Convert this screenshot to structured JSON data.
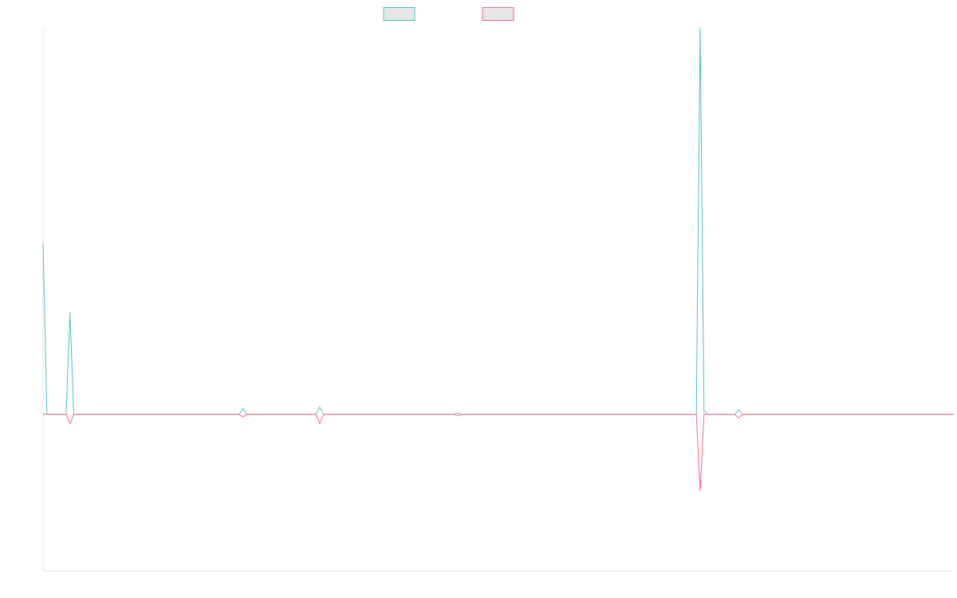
{
  "chart_data": {
    "type": "line",
    "title": "",
    "xlabel": "",
    "ylabel": "",
    "legend": {
      "position": "top-center"
    },
    "x_count": 238,
    "ylim": [
      -240,
      590
    ],
    "grid": false,
    "series": [
      {
        "name": "",
        "color": "#4bc0c0",
        "fill": "#e6e6e6",
        "points": [
          [
            0,
            262
          ],
          [
            1,
            0
          ],
          [
            6,
            0
          ],
          [
            7,
            157
          ],
          [
            8,
            0
          ],
          [
            51,
            0
          ],
          [
            52,
            9
          ],
          [
            53,
            0
          ],
          [
            71,
            0
          ],
          [
            72,
            11
          ],
          [
            73,
            0
          ],
          [
            107,
            0
          ],
          [
            108,
            2
          ],
          [
            109,
            0
          ],
          [
            170,
            0
          ],
          [
            171,
            593
          ],
          [
            172,
            5
          ],
          [
            173,
            0
          ],
          [
            180,
            0
          ],
          [
            181,
            7
          ],
          [
            182,
            0
          ],
          [
            237,
            0
          ]
        ]
      },
      {
        "name": "",
        "color": "#ff6384",
        "fill": "#e6e6e6",
        "points": [
          [
            0,
            0
          ],
          [
            6,
            0
          ],
          [
            7,
            -14
          ],
          [
            8,
            0
          ],
          [
            51,
            0
          ],
          [
            52,
            -4
          ],
          [
            53,
            0
          ],
          [
            71,
            0
          ],
          [
            72,
            -14
          ],
          [
            73,
            0
          ],
          [
            107,
            0
          ],
          [
            108,
            -2
          ],
          [
            109,
            0
          ],
          [
            170,
            0
          ],
          [
            171,
            -118
          ],
          [
            172,
            0
          ],
          [
            180,
            0
          ],
          [
            181,
            -6
          ],
          [
            182,
            0
          ],
          [
            237,
            0
          ]
        ]
      }
    ]
  }
}
